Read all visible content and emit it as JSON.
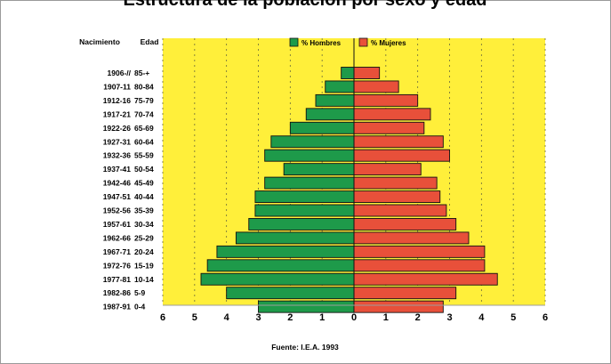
{
  "chart_data": {
    "type": "bar",
    "orientation": "horizontal-population-pyramid",
    "title": "Estructura de la población por sexo y edad",
    "col_header_birth": "Nacimiento",
    "col_header_age": "Edad",
    "source": "Fuente: I.E.A. 1993",
    "xlim": [
      -6,
      6
    ],
    "x_ticks": [
      "6",
      "5",
      "4",
      "3",
      "2",
      "1",
      "0",
      "1",
      "2",
      "3",
      "4",
      "5",
      "6"
    ],
    "grid": "vertical dashed",
    "legend_position": "top-center",
    "background_color": "#ffef3a",
    "age_groups": [
      "85-+",
      "80-84",
      "75-79",
      "70-74",
      "65-69",
      "60-64",
      "55-59",
      "50-54",
      "45-49",
      "40-44",
      "35-39",
      "30-34",
      "25-29",
      "20-24",
      "15-19",
      "10-14",
      "5-9",
      "0-4"
    ],
    "birth_years": [
      "1906-//",
      "1907-11",
      "1912-16",
      "1917-21",
      "1922-26",
      "1927-31",
      "1932-36",
      "1937-41",
      "1942-46",
      "1947-51",
      "1952-56",
      "1957-61",
      "1962-66",
      "1967-71",
      "1972-76",
      "1977-81",
      "1982-86",
      "1987-91"
    ],
    "series": [
      {
        "name": "% Hombres",
        "color": "#1e9a4a",
        "values": [
          0.4,
          0.9,
          1.2,
          1.5,
          2.0,
          2.6,
          2.8,
          2.2,
          2.8,
          3.1,
          3.1,
          3.3,
          3.7,
          4.3,
          4.6,
          4.8,
          4.0,
          3.0
        ]
      },
      {
        "name": "% Mujeres",
        "color": "#e8503a",
        "values": [
          0.8,
          1.4,
          2.0,
          2.4,
          2.2,
          2.8,
          3.0,
          2.1,
          2.6,
          2.7,
          2.9,
          3.2,
          3.6,
          4.1,
          4.1,
          4.5,
          3.2,
          2.8
        ]
      }
    ]
  }
}
